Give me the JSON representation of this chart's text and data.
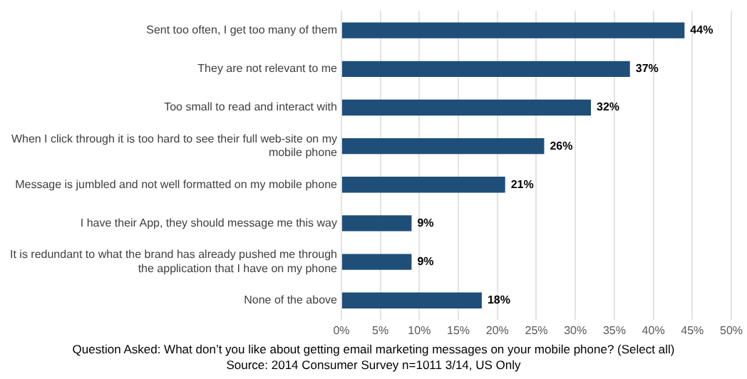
{
  "chart_data": {
    "type": "bar",
    "orientation": "horizontal",
    "categories": [
      "Sent too often, I get too many of them",
      "They are not relevant to me",
      "Too small to read and interact with",
      "When I click through it is too hard to see their full web-site on my mobile phone",
      "Message is jumbled and not well formatted on my mobile phone",
      "I have their App, they should message me this way",
      "It is redundant to what the brand has already pushed me through the application that I have on my phone",
      "None of the above"
    ],
    "values": [
      44,
      37,
      32,
      26,
      21,
      9,
      9,
      18
    ],
    "value_labels": [
      "44%",
      "37%",
      "32%",
      "26%",
      "21%",
      "9%",
      "9%",
      "18%"
    ],
    "color": "#1f4e79",
    "xlim": [
      0,
      50
    ],
    "xticks": [
      {
        "value": 0,
        "label": "0%"
      },
      {
        "value": 5,
        "label": "5%"
      },
      {
        "value": 10,
        "label": "10%"
      },
      {
        "value": 15,
        "label": "15%"
      },
      {
        "value": 20,
        "label": "20%"
      },
      {
        "value": 25,
        "label": "25%"
      },
      {
        "value": 30,
        "label": "30%"
      },
      {
        "value": 35,
        "label": "35%"
      },
      {
        "value": 40,
        "label": "40%"
      },
      {
        "value": 45,
        "label": "45%"
      },
      {
        "value": 50,
        "label": "50%"
      }
    ],
    "grid": "x",
    "annotations": [
      "Question Asked: What don’t you like about getting email marketing messages on your mobile phone? (Select all)",
      "Source: 2014 Consumer Survey n=1011 3/14, US Only"
    ]
  }
}
